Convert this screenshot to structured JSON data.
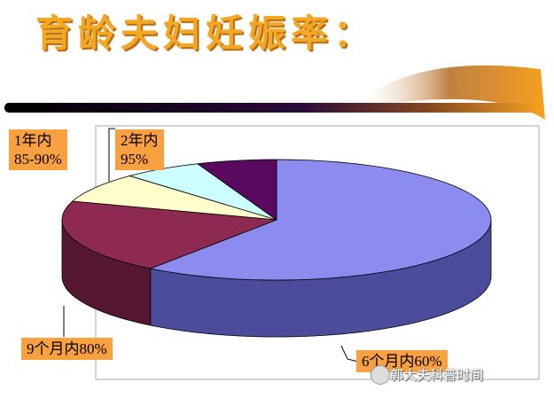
{
  "chart_data": {
    "type": "pie",
    "title": "育龄夫妇妊娠率：",
    "categories": [
      "6个月内60%",
      "9个月内80%",
      "1年内\n85-90%",
      "2年内\n95%",
      null
    ],
    "values": [
      60,
      20,
      8,
      6,
      6
    ],
    "colors": [
      "#8c8cf0",
      "#8e2a52",
      "#ffffcc",
      "#ccffff",
      "#5a0a5e"
    ],
    "side_colors": [
      "#4c4c9c",
      "#561830",
      "#b8b890",
      "#90b8b8",
      "#380638"
    ],
    "label_color": "#f9a040",
    "watermark": "郭大夫科普时间"
  }
}
